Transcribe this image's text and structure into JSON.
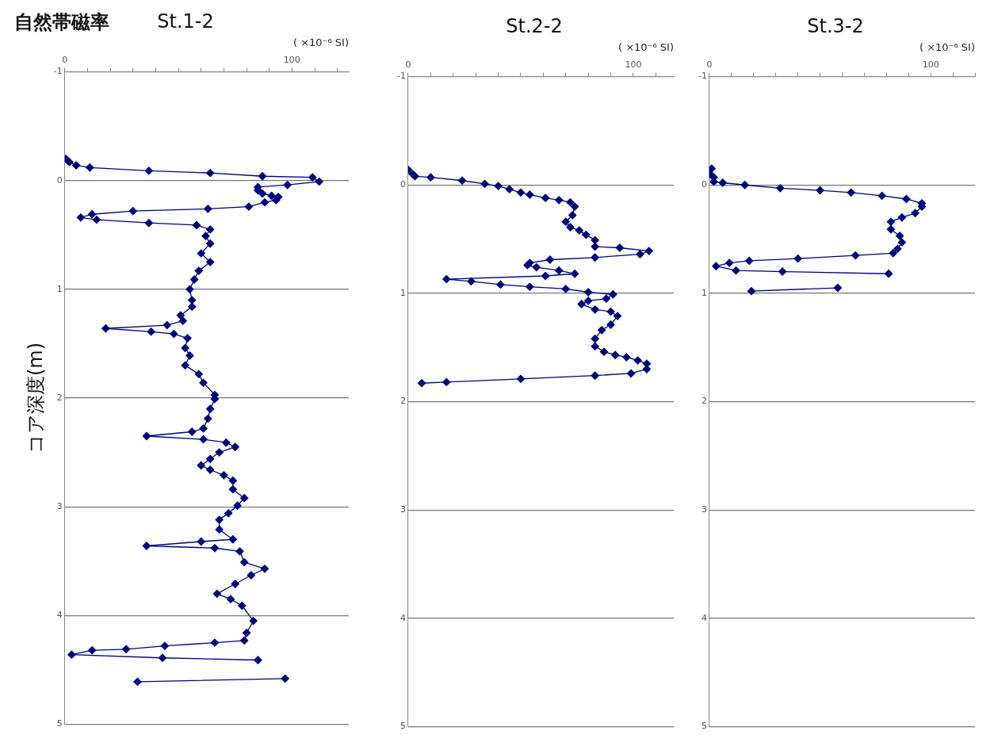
{
  "chart_data": [
    {
      "type": "line",
      "title": "St.1-2",
      "xlabel": "( ×10⁻⁶ SI)",
      "ylabel": "コア深度(m)",
      "annotations": [
        "自然帯磁率"
      ],
      "xlim": [
        0,
        125
      ],
      "xticks": [
        {
          "value": 0,
          "label": "0"
        },
        {
          "value": 10,
          "label": null
        },
        {
          "value": 20,
          "label": null
        },
        {
          "value": 30,
          "label": null
        },
        {
          "value": 40,
          "label": null
        },
        {
          "value": 50,
          "label": null
        },
        {
          "value": 60,
          "label": null
        },
        {
          "value": 70,
          "label": null
        },
        {
          "value": 80,
          "label": null
        },
        {
          "value": 90,
          "label": null
        },
        {
          "value": 100,
          "label": "100"
        },
        {
          "value": 110,
          "label": null
        },
        {
          "value": 120,
          "label": null
        }
      ],
      "ylim": [
        5,
        -1
      ],
      "yticks": [
        {
          "value": -1,
          "label": "-1"
        },
        {
          "value": 0,
          "label": "0"
        },
        {
          "value": 1,
          "label": "1"
        },
        {
          "value": 2,
          "label": "2"
        },
        {
          "value": 3,
          "label": "3"
        },
        {
          "value": 4,
          "label": "4"
        },
        {
          "value": 5,
          "label": "5"
        }
      ],
      "grid": "y",
      "legend": false,
      "marker": "diamond",
      "series": [
        {
          "color": "#000080",
          "x": [
            0.5,
            2,
            5,
            11,
            37,
            64,
            87,
            109,
            112,
            98,
            85,
            85,
            87,
            91,
            94,
            93,
            88,
            81,
            63,
            30,
            12,
            7,
            14,
            37,
            58,
            64,
            62,
            64,
            60,
            64,
            59,
            57,
            55,
            56,
            56,
            51,
            52,
            45,
            18,
            38,
            48,
            54,
            53,
            55,
            53,
            59,
            61,
            66,
            66,
            64,
            63,
            61,
            56,
            36,
            61,
            71,
            75,
            68,
            64,
            60,
            64,
            70,
            74,
            74,
            79,
            76,
            72,
            68,
            68,
            74,
            60,
            36,
            66,
            77,
            79,
            88,
            82,
            75,
            67,
            73,
            78,
            83,
            80,
            79,
            66,
            44,
            27,
            12,
            3,
            43,
            85,
            null,
            97,
            32
          ],
          "values": [
            -0.2,
            -0.17,
            -0.14,
            -0.12,
            -0.09,
            -0.07,
            -0.04,
            -0.03,
            0.01,
            0.04,
            0.06,
            0.09,
            0.12,
            0.14,
            0.15,
            0.18,
            0.2,
            0.24,
            0.26,
            0.28,
            0.31,
            0.34,
            0.36,
            0.39,
            0.41,
            0.45,
            0.51,
            0.58,
            0.67,
            0.75,
            0.83,
            0.91,
            1.0,
            1.1,
            1.16,
            1.24,
            1.29,
            1.33,
            1.36,
            1.39,
            1.41,
            1.45,
            1.54,
            1.61,
            1.7,
            1.78,
            1.86,
            1.97,
            2.01,
            2.1,
            2.19,
            2.28,
            2.31,
            2.35,
            2.38,
            2.41,
            2.45,
            2.5,
            2.56,
            2.62,
            2.66,
            2.71,
            2.76,
            2.84,
            2.92,
            2.99,
            3.06,
            3.12,
            3.21,
            3.3,
            3.32,
            3.36,
            3.38,
            3.41,
            3.51,
            3.57,
            3.63,
            3.71,
            3.8,
            3.85,
            3.91,
            4.05,
            4.16,
            4.23,
            4.25,
            4.28,
            4.31,
            4.32,
            4.36,
            4.39,
            4.41,
            null,
            4.58,
            4.61
          ]
        }
      ]
    },
    {
      "type": "line",
      "title": "St.2-2",
      "xlabel": "( ×10⁻⁶ SI)",
      "xlim": [
        0,
        118
      ],
      "xticks": [
        {
          "value": 0,
          "label": "0"
        },
        {
          "value": 10,
          "label": null
        },
        {
          "value": 20,
          "label": null
        },
        {
          "value": 30,
          "label": null
        },
        {
          "value": 40,
          "label": null
        },
        {
          "value": 50,
          "label": null
        },
        {
          "value": 60,
          "label": null
        },
        {
          "value": 70,
          "label": null
        },
        {
          "value": 80,
          "label": null
        },
        {
          "value": 90,
          "label": null
        },
        {
          "value": 100,
          "label": "100"
        },
        {
          "value": 110,
          "label": null
        }
      ],
      "ylim": [
        5,
        -1
      ],
      "yticks": [
        {
          "value": -1,
          "label": "-1"
        },
        {
          "value": 0,
          "label": "0"
        },
        {
          "value": 1,
          "label": "1"
        },
        {
          "value": 2,
          "label": "2"
        },
        {
          "value": 3,
          "label": "3"
        },
        {
          "value": 4,
          "label": "4"
        },
        {
          "value": 5,
          "label": "5"
        }
      ],
      "grid": "y",
      "legend": false,
      "marker": "diamond",
      "series": [
        {
          "color": "#000080",
          "x": [
            0,
            2,
            3,
            10,
            24,
            34,
            40,
            45,
            50,
            54,
            61,
            67,
            72,
            74,
            73,
            70,
            72,
            76,
            79,
            83,
            83,
            94,
            107,
            103,
            83,
            63,
            54,
            53,
            57,
            67,
            74,
            61,
            17,
            28,
            41,
            54,
            70,
            80,
            91,
            88,
            80,
            77,
            83,
            90,
            93,
            90,
            86,
            83,
            83,
            87,
            92,
            97,
            102,
            106,
            106,
            99,
            83,
            50,
            17,
            6
          ],
          "values": [
            -0.14,
            -0.1,
            -0.08,
            -0.07,
            -0.04,
            -0.01,
            0.01,
            0.04,
            0.07,
            0.09,
            0.12,
            0.14,
            0.16,
            0.2,
            0.28,
            0.34,
            0.39,
            0.42,
            0.46,
            0.51,
            0.57,
            0.58,
            0.61,
            0.64,
            0.67,
            0.69,
            0.72,
            0.74,
            0.76,
            0.79,
            0.82,
            0.84,
            0.87,
            0.89,
            0.92,
            0.94,
            0.96,
            0.99,
            1.01,
            1.05,
            1.07,
            1.1,
            1.15,
            1.17,
            1.21,
            1.29,
            1.34,
            1.42,
            1.49,
            1.54,
            1.57,
            1.59,
            1.62,
            1.65,
            1.7,
            1.74,
            1.76,
            1.79,
            1.82,
            1.83
          ]
        }
      ]
    },
    {
      "type": "line",
      "title": "St.3-2",
      "xlabel": "( ×10⁻⁶ SI)",
      "xlim": [
        0,
        120
      ],
      "xticks": [
        {
          "value": 0,
          "label": "0"
        },
        {
          "value": 10,
          "label": null
        },
        {
          "value": 20,
          "label": null
        },
        {
          "value": 30,
          "label": null
        },
        {
          "value": 40,
          "label": null
        },
        {
          "value": 50,
          "label": null
        },
        {
          "value": 60,
          "label": null
        },
        {
          "value": 70,
          "label": null
        },
        {
          "value": 80,
          "label": null
        },
        {
          "value": 90,
          "label": null
        },
        {
          "value": 100,
          "label": "100"
        },
        {
          "value": 110,
          "label": null
        },
        {
          "value": 120,
          "label": null
        }
      ],
      "ylim": [
        5,
        -1
      ],
      "yticks": [
        {
          "value": -1,
          "label": "-1"
        },
        {
          "value": 0,
          "label": "0"
        },
        {
          "value": 1,
          "label": "1"
        },
        {
          "value": 2,
          "label": "2"
        },
        {
          "value": 3,
          "label": "3"
        },
        {
          "value": 4,
          "label": "4"
        },
        {
          "value": 5,
          "label": "5"
        }
      ],
      "grid": "y",
      "legend": false,
      "marker": "diamond",
      "series": [
        {
          "color": "#000080",
          "x": [
            1,
            0.4,
            2,
            2,
            6,
            16,
            32,
            50,
            64,
            78,
            89,
            96,
            96,
            93,
            87,
            82,
            82,
            86,
            87,
            85,
            83,
            66,
            40,
            18,
            9,
            3,
            12,
            33,
            81,
            null,
            58,
            19
          ],
          "values": [
            -0.15,
            -0.1,
            -0.07,
            -0.03,
            -0.02,
            0,
            0.03,
            0.05,
            0.07,
            0.1,
            0.13,
            0.17,
            0.2,
            0.26,
            0.3,
            0.34,
            0.41,
            0.47,
            0.53,
            0.59,
            0.63,
            0.65,
            0.68,
            0.7,
            0.72,
            0.75,
            0.79,
            0.8,
            0.82,
            null,
            0.95,
            0.98
          ]
        }
      ]
    }
  ]
}
